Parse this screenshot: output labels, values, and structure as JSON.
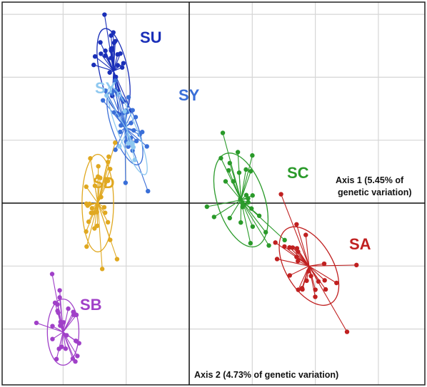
{
  "chart_data": {
    "type": "scatter",
    "axis1_label": [
      "Axis 1 (5.45% of",
      "genetic variation)"
    ],
    "axis2_label": "Axis 2 (4.73% of genetic variation)",
    "xlim": [
      -3.0,
      3.0
    ],
    "ylim": [
      -3.0,
      3.0
    ],
    "grid": true,
    "groups": [
      {
        "name": "SU",
        "label": "SU",
        "label_sub": "",
        "color": "#1a2fb8",
        "centroid": [
          -1.2,
          2.1
        ],
        "spread": [
          0.18,
          0.55
        ],
        "tilt": -12,
        "count": 30
      },
      {
        "name": "SY",
        "label": "SY",
        "label_sub": "",
        "color": "#3a6fd8",
        "centroid": [
          -1.02,
          1.2
        ],
        "spread": [
          0.16,
          0.5
        ],
        "tilt": -20,
        "count": 30
      },
      {
        "name": "SYn",
        "label": "SY",
        "label_sub": "n",
        "color": "#8ec8f0",
        "centroid": [
          -0.98,
          1.15
        ],
        "spread": [
          0.12,
          0.6
        ],
        "tilt": -22,
        "count": 8
      },
      {
        "name": "SD",
        "label": "SD",
        "label_sub": "",
        "color": "#e0a820",
        "centroid": [
          -1.45,
          0.0
        ],
        "spread": [
          0.2,
          0.62
        ],
        "tilt": 0,
        "count": 32
      },
      {
        "name": "SC",
        "label": "SC",
        "label_sub": "",
        "color": "#2a9a2a",
        "centroid": [
          0.82,
          0.05
        ],
        "spread": [
          0.3,
          0.62
        ],
        "tilt": -18,
        "count": 30
      },
      {
        "name": "SA",
        "label": "SA",
        "label_sub": "",
        "color": "#c02020",
        "centroid": [
          1.9,
          -1.0
        ],
        "spread": [
          0.3,
          0.55
        ],
        "tilt": -30,
        "count": 28
      },
      {
        "name": "SB",
        "label": "SB",
        "label_sub": "",
        "color": "#a040c8",
        "centroid": [
          -2.0,
          -2.05
        ],
        "spread": [
          0.2,
          0.42
        ],
        "tilt": 0,
        "count": 28
      }
    ]
  }
}
